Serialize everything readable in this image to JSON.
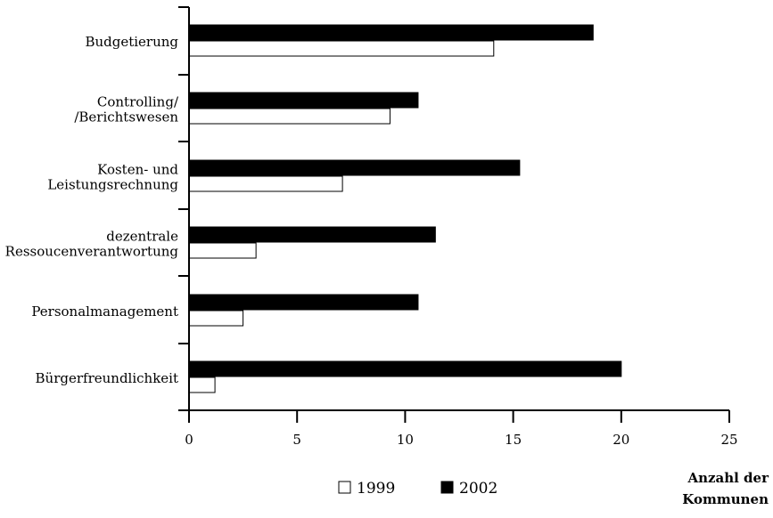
{
  "chart_data": {
    "type": "bar",
    "orientation": "horizontal",
    "categories": [
      [
        "Budgetierung"
      ],
      [
        "Controlling/",
        "/Berichtswesen"
      ],
      [
        "Kosten- und",
        "Leistungsrechnung"
      ],
      [
        "dezentrale",
        "Ressoucenverantwortung"
      ],
      [
        "Personalmanagement"
      ],
      [
        "Bürgerfreundlichkeit"
      ]
    ],
    "series": [
      {
        "name": "2002",
        "color": "#000000",
        "values": [
          18.7,
          10.6,
          15.3,
          11.4,
          10.6,
          20.0
        ]
      },
      {
        "name": "1999",
        "color": "#ffffff",
        "values": [
          14.1,
          9.3,
          7.1,
          3.1,
          2.5,
          1.2
        ]
      }
    ],
    "xlim": [
      0,
      25
    ],
    "xticks": [
      "0",
      "5",
      "10",
      "15",
      "20",
      "25"
    ],
    "xlabel": [
      "Anzahl der",
      "Kommunen"
    ],
    "legend": {
      "position": "bottom",
      "items": [
        {
          "label": "1999",
          "color": "#ffffff"
        },
        {
          "label": "2002",
          "color": "#000000"
        }
      ]
    },
    "grid": false
  }
}
